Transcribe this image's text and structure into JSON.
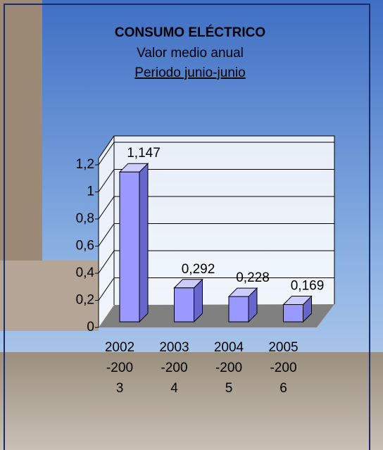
{
  "chart_data": {
    "type": "bar3d",
    "title": "CONSUMO ELÉCTRICO",
    "subtitle": "Valor medio anual",
    "period": "Periodo junio-junio",
    "categories": [
      "2002-2003",
      "2003-2004",
      "2004-2005",
      "2005-2006"
    ],
    "values": [
      1.147,
      0.292,
      0.228,
      0.169
    ],
    "value_labels": [
      "1,147",
      "0,292",
      "0,228",
      "0,169"
    ],
    "color": "#9999ff",
    "ylim": [
      0,
      1.2
    ],
    "yticks": [
      0,
      {
        "value": 0.2,
        "label": "0,2"
      },
      {
        "value": 0.4,
        "label": "0,4"
      },
      {
        "value": 0.6,
        "label": "0,6"
      },
      {
        "value": 0.8,
        "label": "0,8"
      },
      1,
      {
        "value": 1.2,
        "label": "1,2"
      }
    ],
    "grid": true
  }
}
